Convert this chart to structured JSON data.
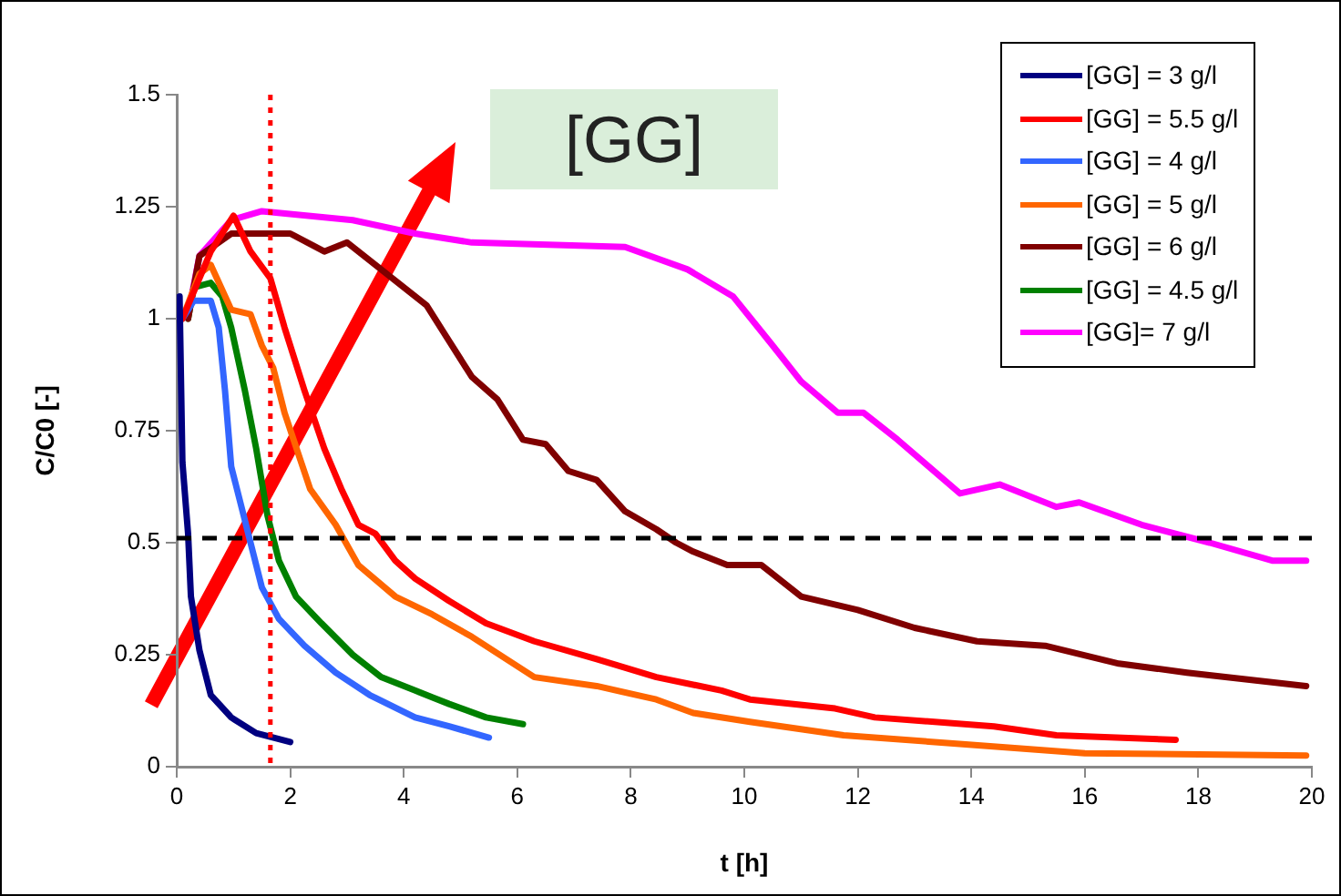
{
  "chart_data": {
    "type": "line",
    "xlabel": "t [h]",
    "ylabel": "C/C0 [-]",
    "annotations": [
      "[GG]"
    ],
    "xlim": [
      0,
      20
    ],
    "xticks": [
      0,
      2,
      4,
      6,
      8,
      10,
      12,
      14,
      16,
      18,
      20
    ],
    "ylim": [
      0,
      1.5
    ],
    "yticks": [
      0,
      0.25,
      0.5,
      0.75,
      1,
      1.25,
      1.5
    ],
    "grid": false,
    "legend": "top right",
    "marker": "none",
    "line_style": "solid",
    "ref_lines": [
      {
        "axis": "x",
        "value": 1.65,
        "color": "#ff0000",
        "line_style": "dotted"
      },
      {
        "axis": "y",
        "value": 0.51,
        "color": "#000000",
        "line_style": "dashed"
      }
    ],
    "series": [
      {
        "name": "[GG] = 3 g/l",
        "color": "#000080",
        "x": [
          0.05,
          0.1,
          0.2,
          0.25,
          0.4,
          0.6,
          0.96,
          1.4,
          2.0
        ],
        "values": [
          1.05,
          0.68,
          0.52,
          0.38,
          0.26,
          0.16,
          0.11,
          0.075,
          0.055
        ]
      },
      {
        "name": "[GG] = 5.5 g/l",
        "color": "#ff0000",
        "x": [
          0.1,
          0.6,
          1.0,
          1.3,
          1.65,
          1.9,
          2.25,
          2.6,
          2.9,
          3.2,
          3.5,
          3.85,
          4.2,
          4.8,
          5.45,
          6.3,
          7.4,
          8.45,
          9.6,
          10.1,
          11.6,
          12.3,
          14.4,
          15.5,
          17.6
        ],
        "values": [
          1.0,
          1.15,
          1.23,
          1.15,
          1.09,
          0.98,
          0.84,
          0.71,
          0.62,
          0.54,
          0.52,
          0.46,
          0.42,
          0.37,
          0.32,
          0.28,
          0.24,
          0.2,
          0.17,
          0.15,
          0.13,
          0.11,
          0.09,
          0.07,
          0.06
        ]
      },
      {
        "name": "[GG] = 4 g/l",
        "color": "#3366ff",
        "x": [
          0.1,
          0.3,
          0.6,
          0.74,
          0.85,
          0.96,
          1.5,
          1.8,
          2.25,
          2.8,
          3.4,
          4.2,
          4.8,
          5.5
        ],
        "values": [
          1.0,
          1.04,
          1.04,
          0.98,
          0.84,
          0.67,
          0.4,
          0.33,
          0.27,
          0.21,
          0.16,
          0.11,
          0.09,
          0.065
        ]
      },
      {
        "name": "[GG] = 5 g/l",
        "color": "#ff6600",
        "x": [
          0.1,
          0.4,
          0.6,
          0.96,
          1.3,
          1.5,
          1.7,
          1.9,
          2.35,
          2.8,
          3.2,
          3.85,
          4.5,
          5.2,
          6.3,
          7.4,
          8.45,
          9.1,
          10.1,
          11.75,
          13.9,
          16.0,
          19.9
        ],
        "values": [
          1.0,
          1.1,
          1.12,
          1.02,
          1.01,
          0.94,
          0.89,
          0.79,
          0.62,
          0.54,
          0.45,
          0.38,
          0.34,
          0.29,
          0.2,
          0.18,
          0.15,
          0.12,
          0.1,
          0.07,
          0.05,
          0.03,
          0.025
        ]
      },
      {
        "name": "[GG] = 6 g/l",
        "color": "#800000",
        "x": [
          0.2,
          0.4,
          0.96,
          2.0,
          2.6,
          3.0,
          4.4,
          4.8,
          5.2,
          5.65,
          6.1,
          6.5,
          6.9,
          7.4,
          7.9,
          8.45,
          8.8,
          9.1,
          9.7,
          10.3,
          11.0,
          12.0,
          13.0,
          14.1,
          15.3,
          16.6,
          17.8,
          19.9
        ],
        "values": [
          1.0,
          1.14,
          1.19,
          1.19,
          1.15,
          1.17,
          1.03,
          0.95,
          0.87,
          0.82,
          0.73,
          0.72,
          0.66,
          0.64,
          0.57,
          0.53,
          0.5,
          0.48,
          0.45,
          0.45,
          0.38,
          0.35,
          0.31,
          0.28,
          0.27,
          0.23,
          0.21,
          0.18
        ]
      },
      {
        "name": "[GG] = 4.5 g/l",
        "color": "#008000",
        "x": [
          0.2,
          0.3,
          0.6,
          0.8,
          0.96,
          1.2,
          1.4,
          1.6,
          1.8,
          2.1,
          2.55,
          3.1,
          3.6,
          4.2,
          4.8,
          5.45,
          6.1
        ],
        "values": [
          1.0,
          1.07,
          1.08,
          1.05,
          0.98,
          0.84,
          0.71,
          0.56,
          0.46,
          0.38,
          0.32,
          0.25,
          0.2,
          0.17,
          0.14,
          0.11,
          0.095
        ]
      },
      {
        "name": "[GG]= 7 g/l",
        "color": "#ff00ff",
        "x": [
          0.2,
          0.4,
          0.96,
          1.5,
          3.1,
          4.2,
          5.2,
          7.9,
          9.0,
          9.8,
          10.5,
          11.0,
          11.65,
          12.1,
          12.7,
          13.8,
          14.5,
          15.5,
          15.9,
          17.0,
          18.2,
          19.3,
          19.9
        ],
        "values": [
          1.01,
          1.14,
          1.22,
          1.24,
          1.22,
          1.19,
          1.17,
          1.16,
          1.11,
          1.05,
          0.94,
          0.86,
          0.79,
          0.79,
          0.73,
          0.61,
          0.63,
          0.58,
          0.59,
          0.54,
          0.5,
          0.46,
          0.46
        ]
      }
    ]
  }
}
